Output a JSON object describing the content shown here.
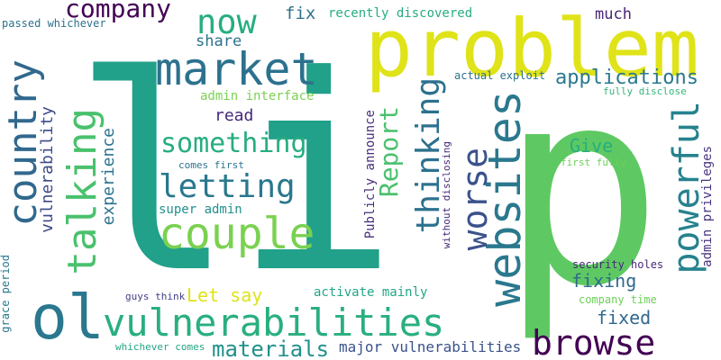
{
  "words": [
    {
      "text": "li",
      "color": "#21a08a"
    },
    {
      "text": "p",
      "color": "#5ec962"
    },
    {
      "text": "problem",
      "color": "#dfe318"
    },
    {
      "text": "market",
      "color": "#2c718e"
    },
    {
      "text": "now",
      "color": "#27ad81"
    },
    {
      "text": "company",
      "color": "#440154"
    },
    {
      "text": "fix",
      "color": "#2c718e"
    },
    {
      "text": "recently discovered",
      "color": "#27ad81"
    },
    {
      "text": "much",
      "color": "#482878"
    },
    {
      "text": "share",
      "color": "#2c728e"
    },
    {
      "text": "passed whichever",
      "color": "#2c718e"
    },
    {
      "text": "country",
      "color": "#31688e"
    },
    {
      "text": "talking",
      "color": "#4ac16d"
    },
    {
      "text": "something",
      "color": "#27ad81"
    },
    {
      "text": "letting",
      "color": "#29788e"
    },
    {
      "text": "couple",
      "color": "#7ad151"
    },
    {
      "text": "read",
      "color": "#482878"
    },
    {
      "text": "Report",
      "color": "#4ac16d"
    },
    {
      "text": "thinking",
      "color": "#2c718e"
    },
    {
      "text": "websites",
      "color": "#2a788e"
    },
    {
      "text": "worse",
      "color": "#3b528b"
    },
    {
      "text": "powerful",
      "color": "#26828e"
    },
    {
      "text": "applications",
      "color": "#2a788e"
    },
    {
      "text": "actual exploit",
      "color": "#2c728e"
    },
    {
      "text": "fully disclose",
      "color": "#35b779"
    },
    {
      "text": "admin interface",
      "color": "#7ad151"
    },
    {
      "text": "vulnerability",
      "color": "#3e4a89"
    },
    {
      "text": "experience",
      "color": "#2c728e"
    },
    {
      "text": "comes first",
      "color": "#2c728e"
    },
    {
      "text": "super admin",
      "color": "#21918c"
    },
    {
      "text": "Give",
      "color": "#27ad81"
    },
    {
      "text": "first fully",
      "color": "#6ece58"
    },
    {
      "text": "admin privileges",
      "color": "#46337e"
    },
    {
      "text": "Publicly announce",
      "color": "#472d7b"
    },
    {
      "text": "without disclosing",
      "color": "#482878"
    },
    {
      "text": "Let say",
      "color": "#dfe318"
    },
    {
      "text": "fixing",
      "color": "#31688e"
    },
    {
      "text": "security holes",
      "color": "#482878"
    },
    {
      "text": "activate mainly",
      "color": "#21a685"
    },
    {
      "text": "company time",
      "color": "#6ece58"
    },
    {
      "text": "grace period",
      "color": "#2a788e"
    },
    {
      "text": "guys think",
      "color": "#424086"
    },
    {
      "text": "ol",
      "color": "#2a788e"
    },
    {
      "text": "vulnerabilities",
      "color": "#29af7f"
    },
    {
      "text": "fixed",
      "color": "#31688e"
    },
    {
      "text": "browse",
      "color": "#440154"
    },
    {
      "text": "materials",
      "color": "#21918c"
    },
    {
      "text": "major vulnerabilities",
      "color": "#3b528b"
    },
    {
      "text": "whichever comes",
      "color": "#22a785"
    }
  ]
}
